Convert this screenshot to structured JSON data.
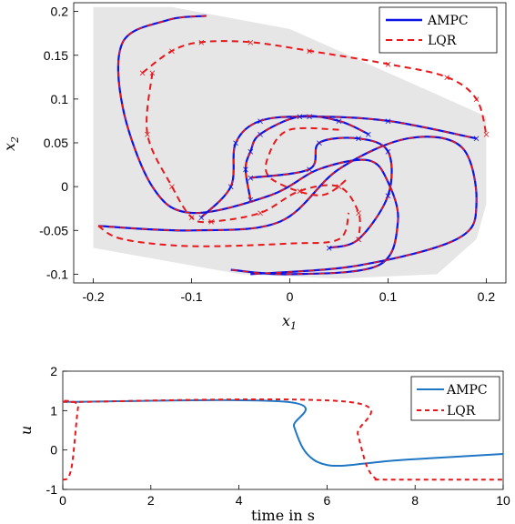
{
  "colors": {
    "ampc_top": "#0a14e6",
    "lqr": "#e8171b",
    "ampc_bottom": "#1f77c4",
    "region": "#e6e6e6"
  },
  "chart_data": [
    {
      "type": "line",
      "xlabel_main": "x",
      "xlabel_sub": "1",
      "ylabel_main": "x",
      "ylabel_sub": "2",
      "xlim": [
        -0.22,
        0.22
      ],
      "ylim": [
        -0.11,
        0.21
      ],
      "xticks": [
        -0.2,
        -0.1,
        0,
        0.1,
        0.2
      ],
      "xtick_labels": [
        "-0.2",
        "-0.1",
        "0",
        "0.1",
        "0.2"
      ],
      "yticks": [
        -0.1,
        -0.05,
        0,
        0.05,
        0.1,
        0.15,
        0.2
      ],
      "ytick_labels": [
        "-0.1",
        "-0.05",
        "0",
        "0.05",
        "0.1",
        "0.15",
        "0.2"
      ],
      "legend_position": "top-right",
      "legend": [
        "AMPC",
        "LQR"
      ],
      "feasible_region": [
        [
          -0.2,
          0.205
        ],
        [
          -0.12,
          0.205
        ],
        [
          0.0,
          0.18
        ],
        [
          0.1,
          0.13
        ],
        [
          0.2,
          0.08
        ],
        [
          0.2,
          -0.02
        ],
        [
          0.19,
          -0.06
        ],
        [
          0.15,
          -0.1
        ],
        [
          0.05,
          -0.105
        ],
        [
          -0.05,
          -0.1
        ],
        [
          -0.2,
          -0.07
        ]
      ],
      "series": [
        {
          "name": "AMPC",
          "trajectories": [
            [
              [
                -0.085,
                0.195
              ],
              [
                -0.125,
                0.19
              ],
              [
                -0.17,
                0.165
              ],
              [
                -0.17,
                0.09
              ],
              [
                -0.14,
                0.0
              ],
              [
                -0.1,
                -0.03
              ],
              [
                -0.02,
                -0.01
              ],
              [
                0.03,
                0.02
              ],
              [
                0.08,
                0.03
              ],
              [
                0.1,
                0.005
              ],
              [
                0.11,
                -0.04
              ],
              [
                0.09,
                -0.09
              ],
              [
                0.0,
                -0.1
              ],
              [
                -0.06,
                -0.095
              ]
            ],
            [
              [
                -0.195,
                -0.045
              ],
              [
                -0.1,
                -0.05
              ],
              [
                -0.01,
                -0.04
              ],
              [
                0.05,
                0.02
              ],
              [
                0.12,
                0.055
              ],
              [
                0.175,
                0.045
              ],
              [
                0.19,
                -0.02
              ],
              [
                0.17,
                -0.06
              ],
              [
                0.07,
                -0.09
              ],
              [
                -0.04,
                -0.1
              ]
            ],
            [
              [
                -0.09,
                -0.035
              ],
              [
                -0.06,
                0.0
              ],
              [
                -0.055,
                0.05
              ],
              [
                -0.03,
                0.075
              ],
              [
                0.02,
                0.08
              ],
              [
                0.1,
                0.075
              ],
              [
                0.19,
                0.055
              ]
            ],
            [
              [
                -0.04,
                -0.015
              ],
              [
                -0.045,
                0.02
              ],
              [
                -0.04,
                0.04
              ],
              [
                -0.03,
                0.06
              ],
              [
                0.01,
                0.08
              ],
              [
                0.05,
                0.075
              ],
              [
                0.08,
                0.06
              ]
            ],
            [
              [
                -0.04,
                0.01
              ],
              [
                0.02,
                0.02
              ],
              [
                0.03,
                0.05
              ],
              [
                0.07,
                0.055
              ],
              [
                0.1,
                0.04
              ],
              [
                0.1,
                -0.01
              ],
              [
                0.07,
                -0.06
              ],
              [
                0.04,
                -0.07
              ]
            ]
          ]
        },
        {
          "name": "LQR",
          "trajectories": [
            [
              [
                -0.15,
                0.13
              ],
              [
                -0.12,
                0.155
              ],
              [
                -0.09,
                0.165
              ],
              [
                -0.04,
                0.165
              ],
              [
                0.02,
                0.155
              ],
              [
                0.1,
                0.14
              ],
              [
                0.16,
                0.125
              ],
              [
                0.19,
                0.1
              ],
              [
                0.2,
                0.06
              ]
            ],
            [
              [
                -0.14,
                0.13
              ],
              [
                -0.145,
                0.06
              ],
              [
                -0.12,
                0.0
              ],
              [
                -0.1,
                -0.035
              ],
              [
                -0.08,
                -0.04
              ],
              [
                -0.03,
                -0.03
              ],
              [
                0.01,
                -0.005
              ],
              [
                0.05,
                0.0
              ],
              [
                0.07,
                -0.03
              ],
              [
                0.07,
                -0.06
              ]
            ],
            [
              [
                -0.195,
                -0.045
              ],
              [
                -0.17,
                -0.06
              ],
              [
                -0.1,
                -0.068
              ],
              [
                0.0,
                -0.065
              ],
              [
                0.05,
                -0.06
              ],
              [
                0.06,
                -0.03
              ]
            ],
            [
              [
                0.05,
                0.065
              ],
              [
                0.0,
                0.065
              ],
              [
                -0.02,
                0.04
              ],
              [
                -0.02,
                0.01
              ],
              [
                0.03,
                -0.01
              ],
              [
                0.06,
                0.01
              ]
            ]
          ]
        }
      ]
    },
    {
      "type": "line",
      "xlabel": "time in s",
      "ylabel": "u",
      "xlim": [
        0,
        10
      ],
      "ylim": [
        -1,
        2
      ],
      "xticks": [
        0,
        2,
        4,
        6,
        8,
        10
      ],
      "xtick_labels": [
        "0",
        "2",
        "4",
        "6",
        "8",
        "10"
      ],
      "yticks": [
        -1,
        0,
        1,
        2
      ],
      "ytick_labels": [
        "-1",
        "0",
        "1",
        "2"
      ],
      "legend_position": "top-right",
      "legend": [
        "AMPC",
        "LQR"
      ],
      "series": [
        {
          "name": "AMPC",
          "x": [
            0,
            5.1,
            5.25,
            5.45,
            5.7,
            6.0,
            6.3,
            6.8,
            7.5,
            8.5,
            10
          ],
          "y": [
            1.22,
            1.22,
            0.6,
            0.05,
            -0.25,
            -0.38,
            -0.4,
            -0.35,
            -0.27,
            -0.2,
            -0.1
          ]
        },
        {
          "name": "LQR",
          "x": [
            0,
            0.12,
            0.22,
            0.35,
            0.45,
            6.5,
            6.7,
            6.9,
            7.1,
            7.3,
            10
          ],
          "y": [
            -0.75,
            -0.7,
            -0.3,
            1.1,
            1.22,
            1.22,
            0.4,
            -0.4,
            -0.72,
            -0.75,
            -0.75
          ]
        }
      ]
    }
  ]
}
